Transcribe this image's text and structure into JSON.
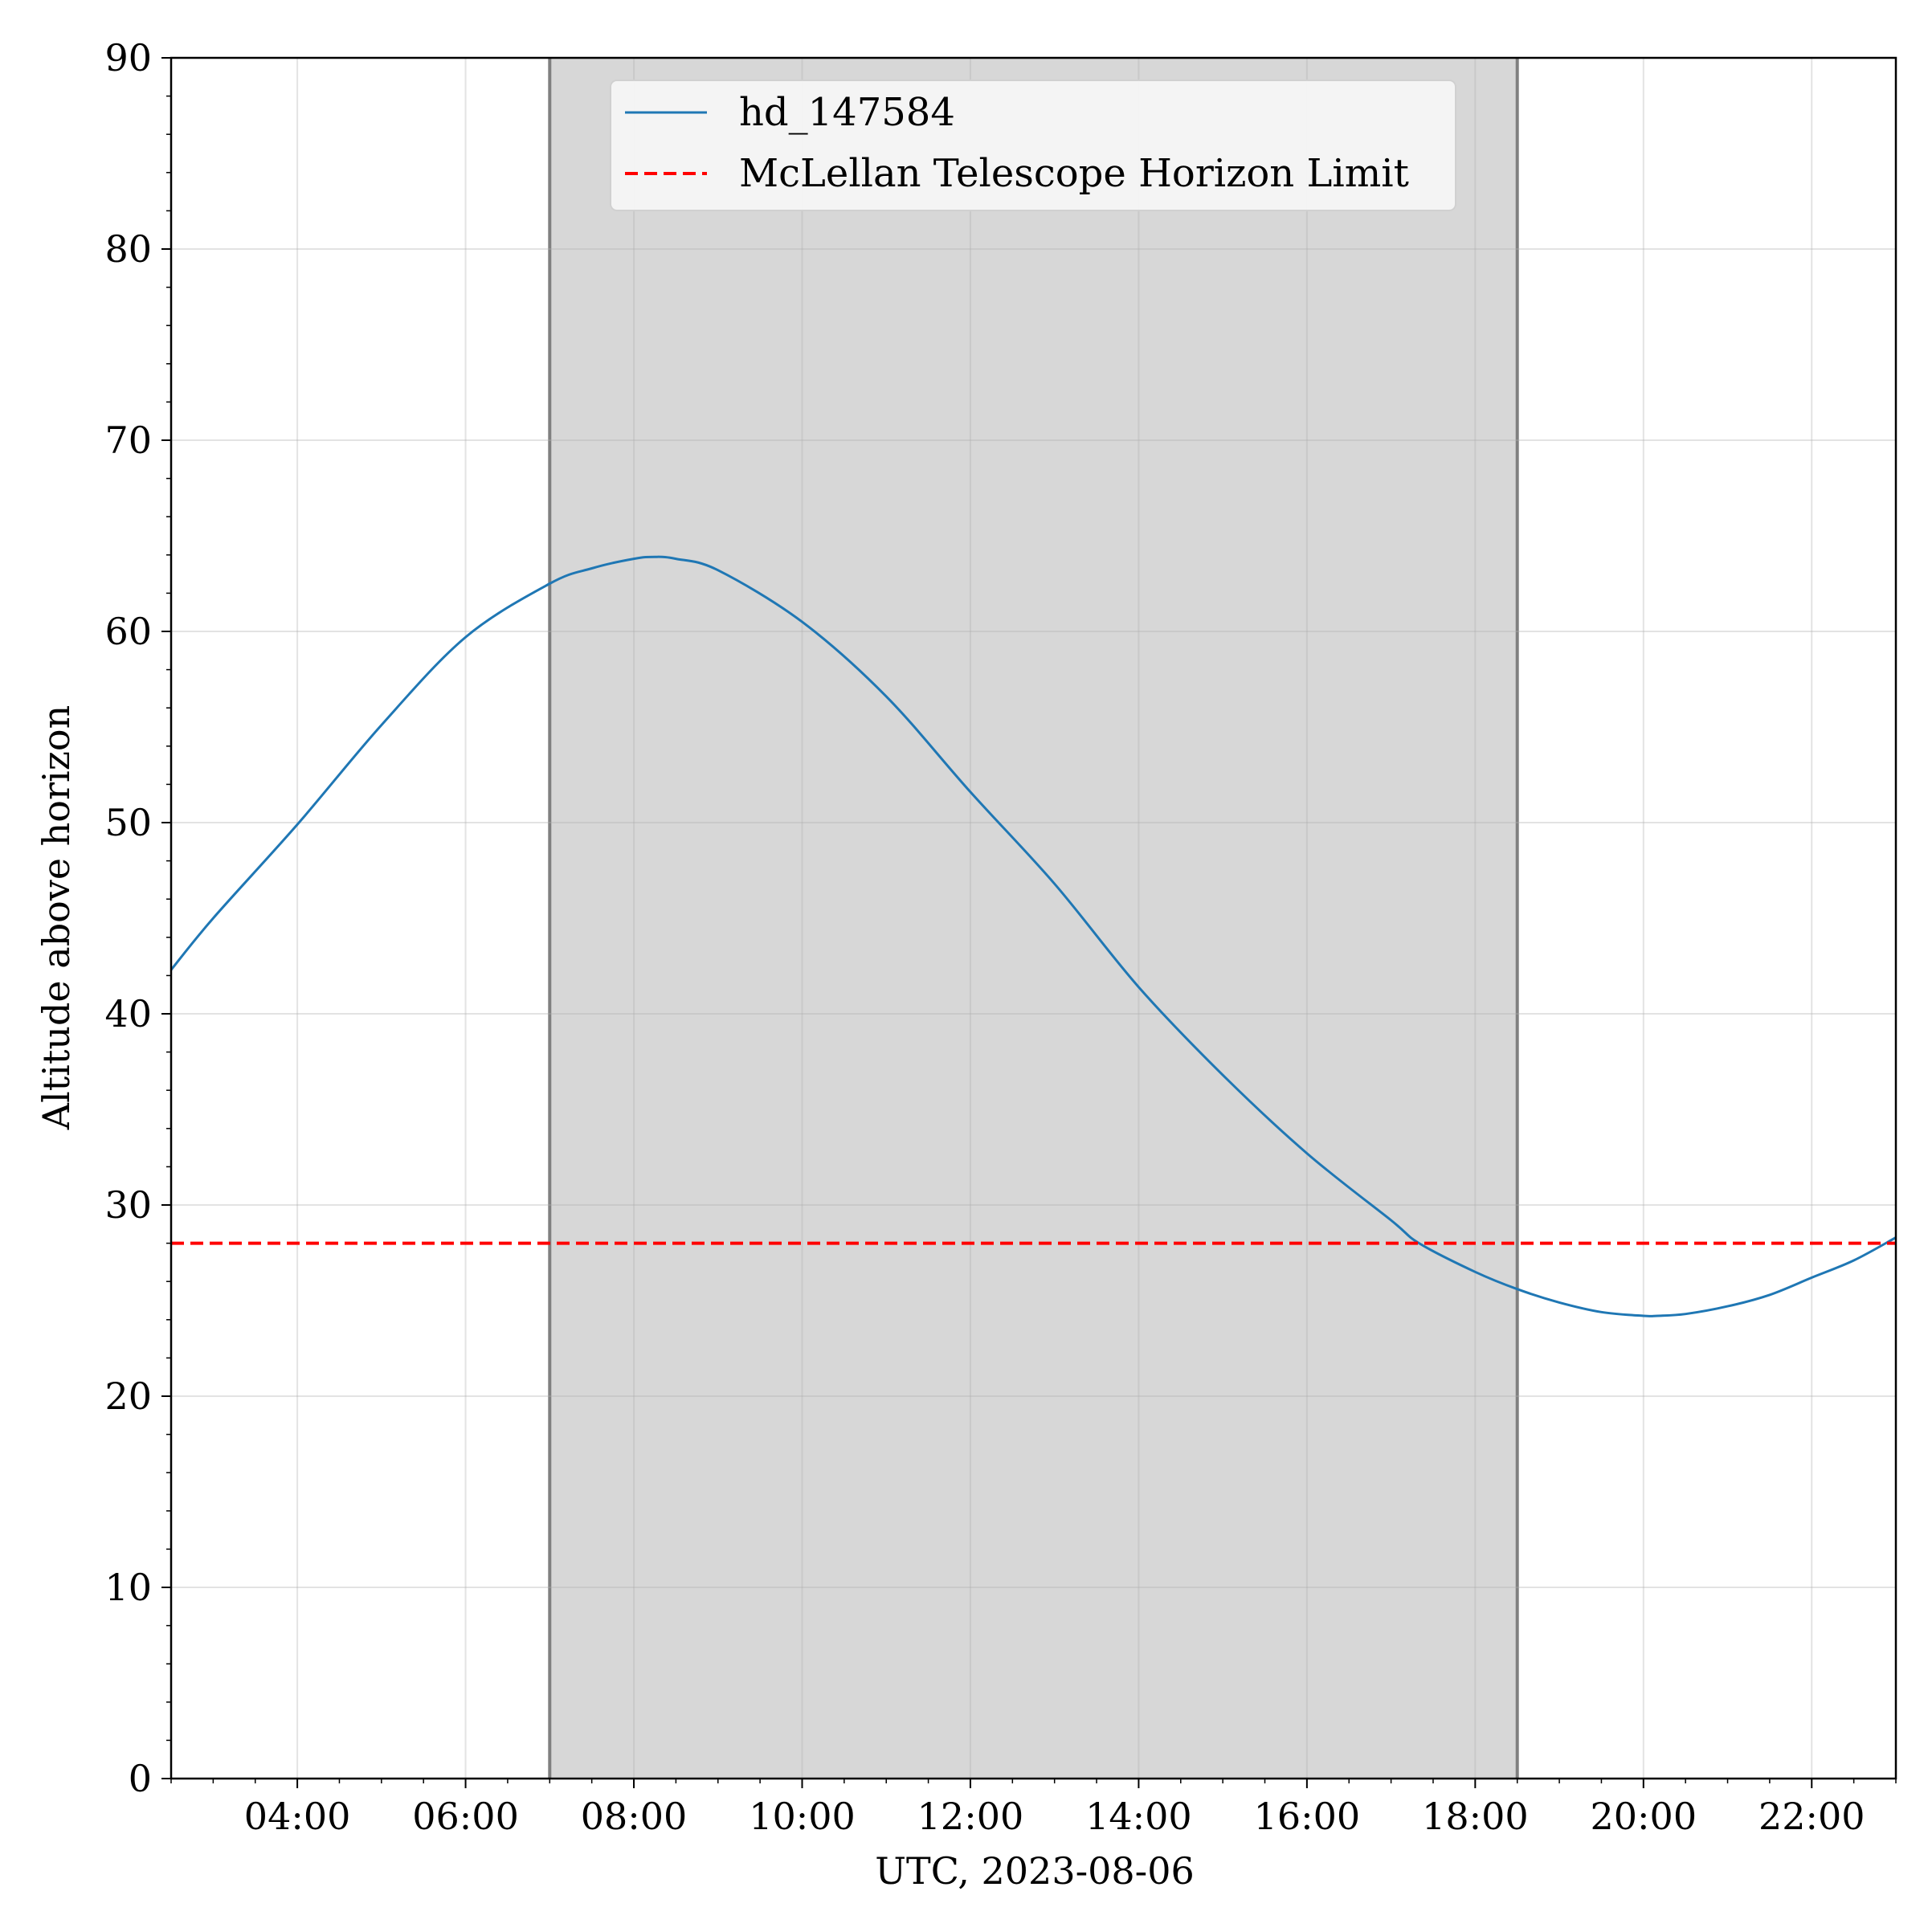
{
  "chart_data": {
    "type": "line",
    "title": "",
    "xlabel": "UTC, 2023-08-06",
    "ylabel": "Altitude above horizon",
    "xlim": [
      "02:30",
      "23:00"
    ],
    "ylim": [
      0,
      90
    ],
    "x_ticks": [
      "04:00",
      "06:00",
      "08:00",
      "10:00",
      "12:00",
      "14:00",
      "16:00",
      "18:00",
      "20:00",
      "22:00"
    ],
    "y_ticks": [
      "0",
      "10",
      "20",
      "30",
      "40",
      "50",
      "60",
      "70",
      "80",
      "90"
    ],
    "grid": true,
    "legend": {
      "placement": "top-center"
    },
    "shaded_region": {
      "start": "07:00",
      "end": "18:30",
      "color": "#d7d7d7",
      "edge_color": "#808080"
    },
    "series": [
      {
        "name": "hd_147584",
        "color": "#1f77b4",
        "style": "solid",
        "x": [
          "02:30",
          "03:00",
          "04:00",
          "05:00",
          "06:00",
          "07:00",
          "07:30",
          "08:00",
          "08:15",
          "08:30",
          "09:00",
          "10:00",
          "11:00",
          "12:00",
          "13:00",
          "14:00",
          "15:00",
          "16:00",
          "17:00",
          "17:20",
          "18:00",
          "18:30",
          "19:00",
          "19:30",
          "20:00",
          "20:10",
          "20:30",
          "21:00",
          "21:30",
          "22:00",
          "22:30",
          "23:00"
        ],
        "y": [
          42.3,
          45.0,
          49.9,
          55.1,
          59.7,
          62.5,
          63.3,
          63.8,
          63.9,
          63.8,
          63.2,
          60.5,
          56.6,
          51.6,
          46.8,
          41.4,
          36.8,
          32.7,
          29.2,
          28.0,
          26.5,
          25.6,
          24.9,
          24.4,
          24.2,
          24.2,
          24.3,
          24.7,
          25.3,
          26.2,
          27.1,
          28.3
        ]
      },
      {
        "name": "McLellan Telescope Horizon Limit",
        "color": "#ff0000",
        "style": "dashed",
        "x": [
          "02:30",
          "23:00"
        ],
        "y": [
          28,
          28
        ]
      }
    ]
  }
}
